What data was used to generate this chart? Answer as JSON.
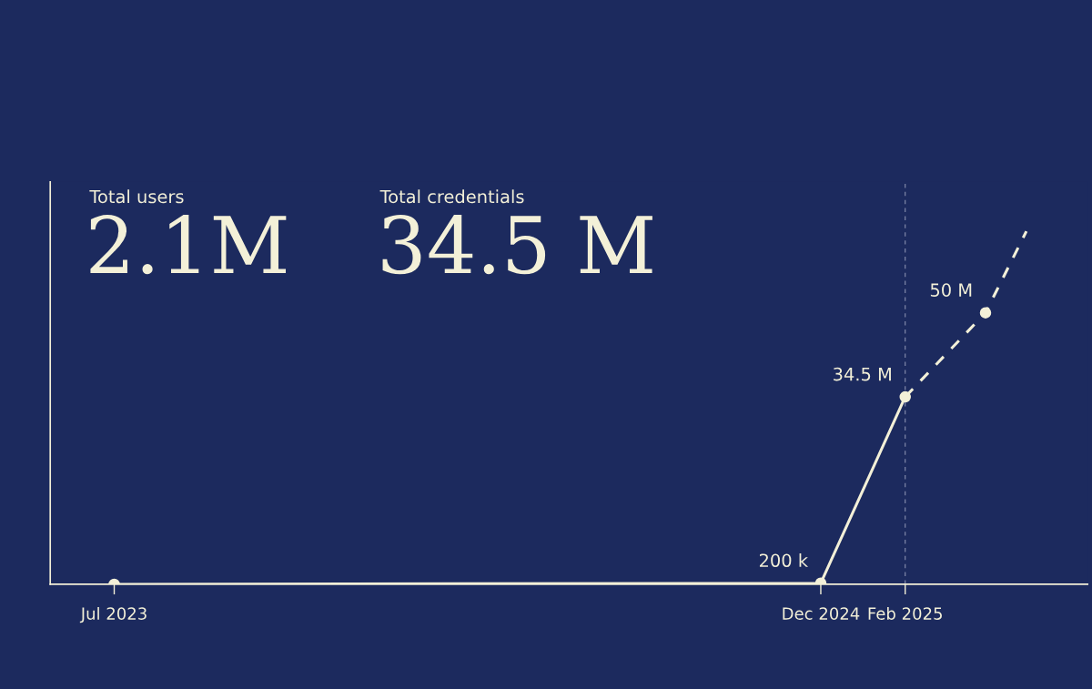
{
  "chart_data": {
    "type": "line",
    "tick_labels": "x",
    "grid": false,
    "legend": false,
    "annotations": [
      "Total users",
      "2.1M",
      "Total credentials",
      "34.5 M"
    ],
    "xlim": [
      "2023-05-15",
      "2025-06-15"
    ],
    "xticks": [
      {
        "value": "2023-07",
        "label": "Jul 2023"
      },
      {
        "value": "2024-12",
        "label": "Dec 2024"
      },
      {
        "value": "2025-02",
        "label": "Feb 2025"
      }
    ],
    "ref_lines": [
      {
        "axis": "x",
        "value": "2025-02",
        "label": null,
        "line_style": "dashed",
        "color": "#8a90b0"
      }
    ],
    "series": [
      {
        "color": "#f3f0d8",
        "marker": "circle",
        "line_style": "solid",
        "x": [
          "2023-07",
          "2024-12",
          "2025-02"
        ],
        "values": [
          0,
          0.2,
          34.5
        ],
        "value_labels": [
          null,
          "200 k",
          "34.5 M"
        ]
      },
      {
        "color": "#f3f0d8",
        "marker": "none",
        "line_style": "dashed",
        "x": [
          "2025-02",
          "2025-04",
          "2025-05"
        ],
        "values": [
          34.5,
          50,
          65
        ]
      },
      {
        "type": "scatter",
        "color": "#f3f0d8",
        "marker": "circle",
        "x": [
          "2025-04"
        ],
        "values": [
          50
        ],
        "value_labels": [
          "50 M"
        ]
      }
    ]
  }
}
